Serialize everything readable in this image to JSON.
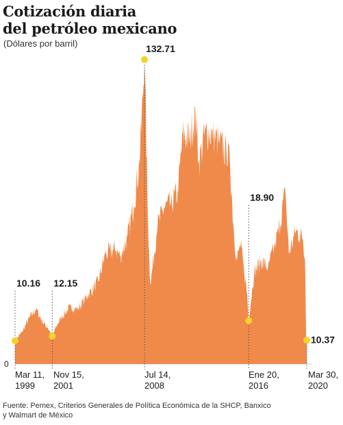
{
  "header": {
    "title_line1": "Cotización diaria",
    "title_line2": "del petróleo mexicano",
    "subtitle": "(Dólares por barril)"
  },
  "footer": {
    "source_line1": "Fuente: Pemex, Criterios Generales de Política Económica de la SHCP, Banxico",
    "source_line2": "y Walmart de México"
  },
  "colors": {
    "area": "#f08a4b",
    "marker": "#f5d327",
    "text": "#1a1a1a",
    "guide": "#555555"
  },
  "chart_data": {
    "type": "area",
    "title": "Cotización diaria del petróleo mexicano",
    "ylabel": "Dólares por barril",
    "y_tick_labels": [
      "0"
    ],
    "ylim": [
      0,
      140
    ],
    "x_range": [
      "1999-03-11",
      "2020-03-30"
    ],
    "grid": false,
    "series": [
      {
        "x": [
          "1999-03",
          "1999-09",
          "2000-03",
          "2000-09",
          "2001-03",
          "2001-07",
          "2001-11",
          "2002-06",
          "2003-03",
          "2003-09",
          "2004-06",
          "2005-03",
          "2005-09",
          "2006-06",
          "2006-10",
          "2007-04",
          "2007-10",
          "2008-03",
          "2008-07",
          "2008-10",
          "2008-12",
          "2009-06",
          "2009-12",
          "2010-06",
          "2010-12",
          "2011-04",
          "2011-10",
          "2012-03",
          "2012-06",
          "2012-12",
          "2013-06",
          "2013-12",
          "2014-06",
          "2014-09",
          "2014-12",
          "2015-03",
          "2015-06",
          "2015-09",
          "2015-12",
          "2016-01",
          "2016-06",
          "2016-12",
          "2017-06",
          "2017-12",
          "2018-03",
          "2018-09",
          "2018-12",
          "2019-06",
          "2019-12",
          "2020-02",
          "2020-03"
        ],
        "values": [
          10.16,
          14,
          20,
          24,
          18,
          16,
          12.15,
          20,
          25,
          24,
          30,
          36,
          48,
          50,
          47,
          55,
          70,
          90,
          132.71,
          60,
          34,
          60,
          68,
          70,
          75,
          100,
          98,
          110,
          88,
          102,
          100,
          96,
          92,
          88,
          60,
          45,
          52,
          42,
          30,
          18.9,
          40,
          45,
          42,
          52,
          58,
          75,
          48,
          58,
          55,
          46,
          10.37
        ]
      }
    ],
    "annotations": [
      {
        "label": "10.16",
        "date_label": [
          "Mar 11,",
          "1999"
        ],
        "x": "1999-03-11",
        "y": 10.16
      },
      {
        "label": "12.15",
        "date_label": [
          "Nov 15,",
          "2001"
        ],
        "x": "2001-11-15",
        "y": 12.15
      },
      {
        "label": "132.71",
        "date_label": [
          "Jul 14,",
          "2008"
        ],
        "x": "2008-07-14",
        "y": 132.71
      },
      {
        "label": "18.90",
        "date_label": [
          "Ene 20,",
          "2016"
        ],
        "x": "2016-01-20",
        "y": 18.9
      },
      {
        "label": "10.37",
        "date_label": [
          "Mar 30,",
          "2020"
        ],
        "x": "2020-03-30",
        "y": 10.37
      }
    ]
  }
}
